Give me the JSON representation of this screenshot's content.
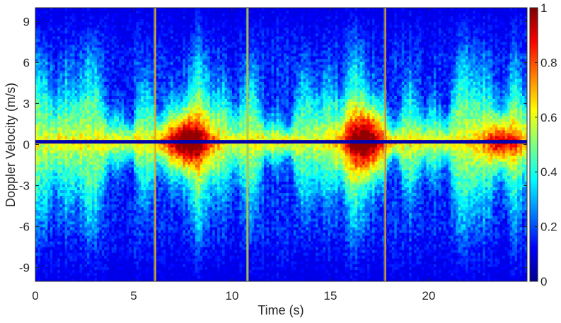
{
  "chart_data": {
    "type": "heatmap",
    "title": "",
    "xlabel": "Time (s)",
    "ylabel": "Doppler Velocity (m/s)",
    "xlim": [
      0,
      25
    ],
    "ylim": [
      -10,
      10
    ],
    "xticks": [
      0,
      5,
      10,
      15,
      20
    ],
    "yticks": [
      -9,
      -6,
      -3,
      0,
      3,
      6,
      9
    ],
    "colorbar": {
      "colormap": "jet",
      "range": [
        0,
        1
      ],
      "ticks": [
        0,
        0.2,
        0.4,
        0.6,
        0.8,
        1
      ],
      "tick_labels": [
        "0",
        "0.2",
        "0.4",
        "0.6",
        "0.8",
        "1"
      ]
    },
    "features": {
      "zero_velocity_band": {
        "velocity": 0.2,
        "value": 0.05
      },
      "vertical_streaks": [
        {
          "time": 6.1,
          "value": 0.72
        },
        {
          "time": 10.8,
          "value": 0.7
        },
        {
          "time": 17.8,
          "value": 0.75
        }
      ],
      "high_energy_regions": [
        {
          "time_range": [
            6.5,
            9.2
          ],
          "velocity_range": [
            -2.2,
            2.2
          ],
          "peak_value": 0.95
        },
        {
          "time_range": [
            15.5,
            17.9
          ],
          "velocity_range": [
            -2.5,
            2.5
          ],
          "peak_value": 0.95
        },
        {
          "time_range": [
            22.5,
            25
          ],
          "velocity_range": [
            -1.5,
            2.0
          ],
          "peak_value": 0.75
        }
      ]
    }
  }
}
